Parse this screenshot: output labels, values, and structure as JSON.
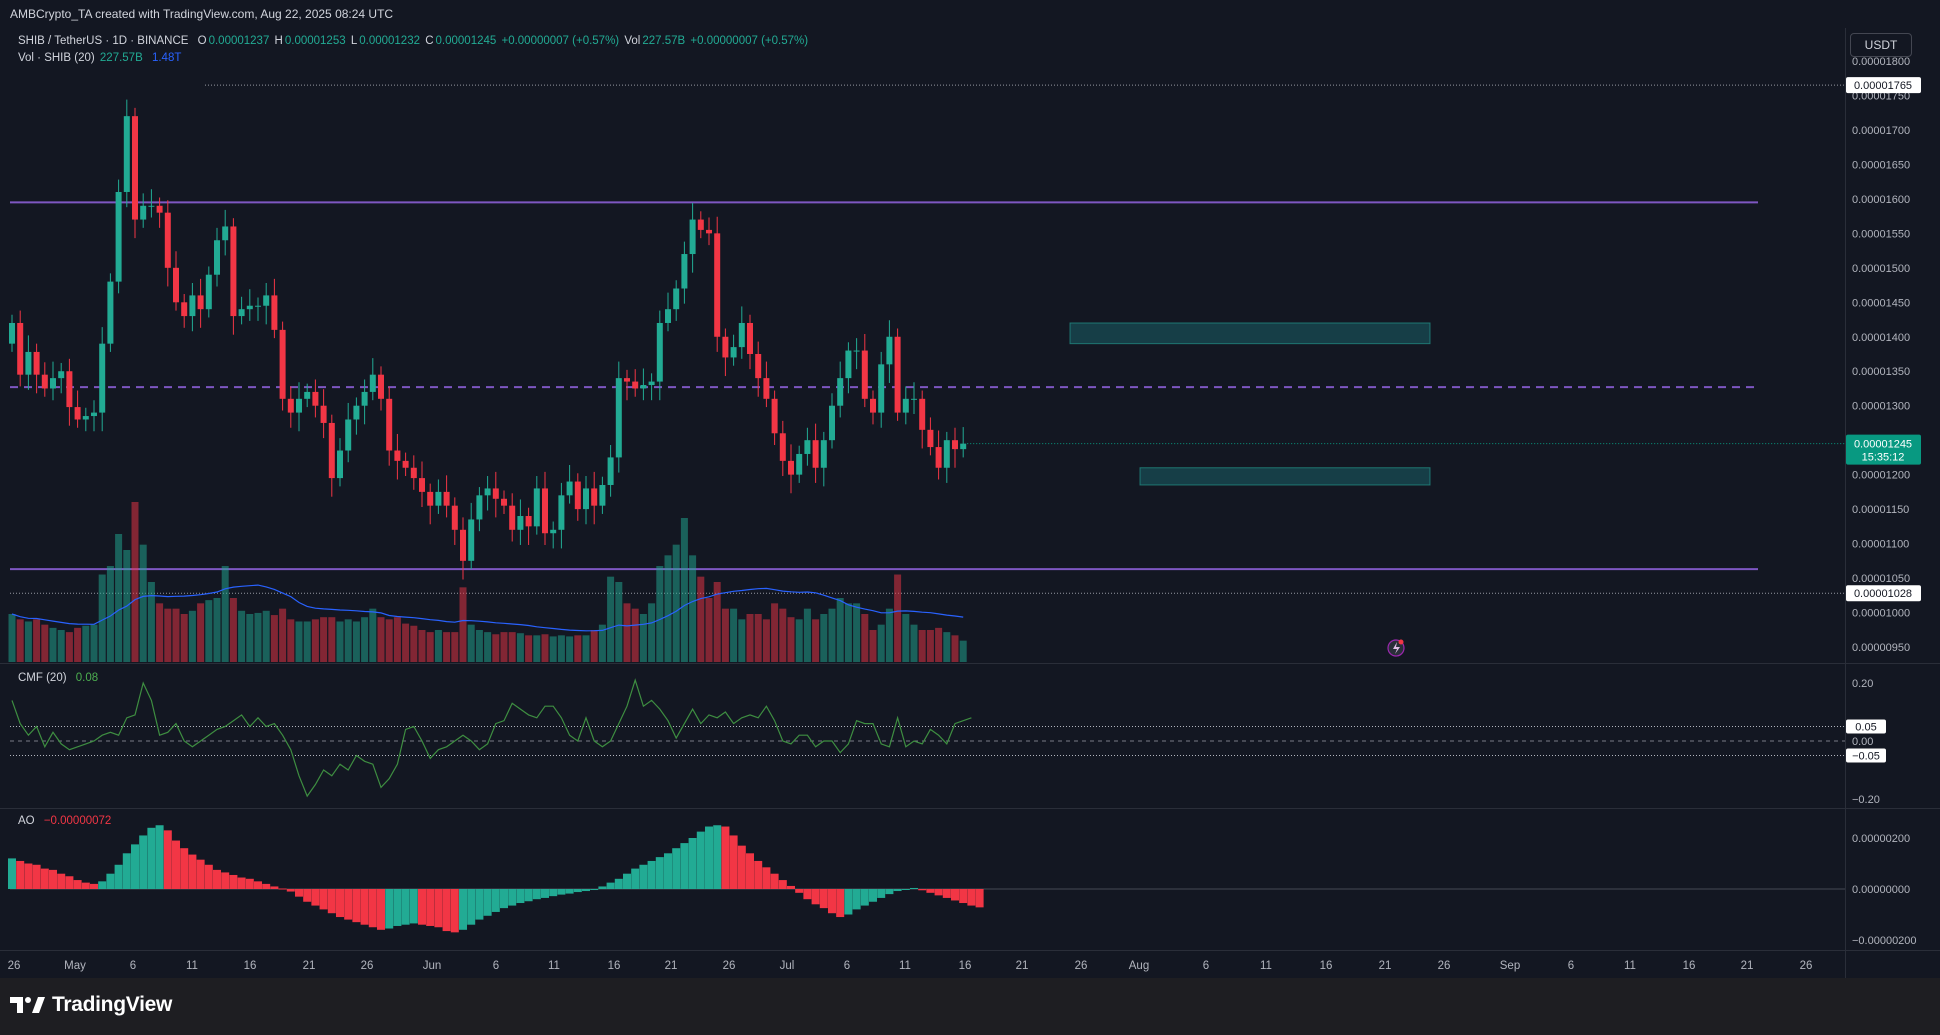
{
  "header": {
    "attribution": "AMBCrypto_TA created with TradingView.com, Aug 22, 2025 08:24 UTC"
  },
  "legend": {
    "symbol": "SHIB / TetherUS · 1D · BINANCE",
    "o_label": "O",
    "o": "0.00001237",
    "h_label": "H",
    "h": "0.00001253",
    "l_label": "L",
    "l": "0.00001232",
    "c_label": "C",
    "c": "0.00001245",
    "change": "+0.00000007 (+0.57%)",
    "vol_label": "Vol",
    "vol": "227.57B",
    "vol_change": "+0.00000007 (+0.57%)",
    "vol_ind": "Vol · SHIB (20)",
    "vol_ind_v1": "227.57B",
    "vol_ind_v2": "1.48T",
    "cmf": "CMF (20)",
    "cmf_v": "0.08",
    "ao": "AO",
    "ao_v": "−0.00000072"
  },
  "currency_button": "USDT",
  "price_labels": {
    "high": "0.00001765",
    "current": "0.00001245",
    "countdown": "15:35:12",
    "low_line": "0.00001028"
  },
  "cmf_labels": {
    "upper": "0.05",
    "lower": "−0.05"
  },
  "footer": {
    "brand": "TradingView"
  },
  "colors": {
    "up": "#22ab94",
    "down": "#f23645",
    "background": "#131722",
    "level_lines": "#7e57c2",
    "zones": "#1a5e66",
    "cmf_line": "#3e8e41",
    "vol_ma": "#2962ff"
  },
  "chart_data": [
    {
      "type": "candlestick",
      "title": "SHIB / TetherUS · 1D · BINANCE",
      "y_ticks": [
        "0.00001800",
        "0.00001750",
        "0.00001700",
        "0.00001650",
        "0.00001600",
        "0.00001550",
        "0.00001500",
        "0.00001450",
        "0.00001400",
        "0.00001350",
        "0.00001300",
        "0.00001250",
        "0.00001200",
        "0.00001150",
        "0.00001100",
        "0.00001050",
        "0.00001000",
        "0.00000950"
      ],
      "ylim": [
        9.3e-06,
        1.82e-05
      ],
      "x_ticks": [
        "26",
        "May",
        "6",
        "11",
        "16",
        "21",
        "26",
        "Jun",
        "6",
        "11",
        "16",
        "21",
        "26",
        "Jul",
        "6",
        "11",
        "16",
        "21",
        "26",
        "Aug",
        "6",
        "11",
        "16",
        "21",
        "26",
        "Sep",
        "6",
        "11",
        "16",
        "21",
        "26"
      ],
      "horizontal_levels": [
        1.595e-05,
        1.327e-05,
        1.063e-05
      ],
      "zones": [
        {
          "from": 1.39e-05,
          "to": 1.42e-05
        },
        {
          "from": 1.185e-05,
          "to": 1.21e-05
        }
      ],
      "last_close": 1.245e-05,
      "close": [
        1.42e-05,
        1.345e-05,
        1.378e-05,
        1.345e-05,
        1.325e-05,
        1.34e-05,
        1.35e-05,
        1.298e-05,
        1.28e-05,
        1.285e-05,
        1.29e-05,
        1.39e-05,
        1.48e-05,
        1.61e-05,
        1.72e-05,
        1.57e-05,
        1.59e-05,
        1.59e-05,
        1.58e-05,
        1.5e-05,
        1.45e-05,
        1.43e-05,
        1.46e-05,
        1.44e-05,
        1.49e-05,
        1.54e-05,
        1.56e-05,
        1.43e-05,
        1.44e-05,
        1.445e-05,
        1.445e-05,
        1.46e-05,
        1.41e-05,
        1.31e-05,
        1.29e-05,
        1.31e-05,
        1.32e-05,
        1.3e-05,
        1.275e-05,
        1.195e-05,
        1.235e-05,
        1.28e-05,
        1.3e-05,
        1.32e-05,
        1.345e-05,
        1.31e-05,
        1.235e-05,
        1.22e-05,
        1.21e-05,
        1.195e-05,
        1.175e-05,
        1.155e-05,
        1.175e-05,
        1.155e-05,
        1.12e-05,
        1.075e-05,
        1.135e-05,
        1.17e-05,
        1.18e-05,
        1.165e-05,
        1.155e-05,
        1.12e-05,
        1.14e-05,
        1.125e-05,
        1.18e-05,
        1.115e-05,
        1.12e-05,
        1.17e-05,
        1.19e-05,
        1.15e-05,
        1.18e-05,
        1.155e-05,
        1.185e-05,
        1.225e-05,
        1.34e-05,
        1.335e-05,
        1.325e-05,
        1.33e-05,
        1.335e-05,
        1.42e-05,
        1.44e-05,
        1.47e-05,
        1.52e-05,
        1.57e-05,
        1.555e-05,
        1.55e-05,
        1.4e-05,
        1.37e-05,
        1.385e-05,
        1.42e-05,
        1.375e-05,
        1.34e-05,
        1.31e-05,
        1.26e-05,
        1.22e-05,
        1.2e-05,
        1.23e-05,
        1.25e-05,
        1.21e-05,
        1.25e-05,
        1.3e-05,
        1.34e-05,
        1.38e-05,
        1.38e-05,
        1.31e-05,
        1.29e-05,
        1.36e-05,
        1.4e-05,
        1.29e-05,
        1.31e-05,
        1.31e-05,
        1.265e-05,
        1.24e-05,
        1.21e-05,
        1.25e-05,
        1.237e-05,
        1.245e-05
      ],
      "series": [
        {
          "name": "Vol · SHIB (20)",
          "values": [
            0.45,
            0.4,
            0.38,
            0.4,
            0.35,
            0.32,
            0.3,
            0.28,
            0.32,
            0.34,
            0.35,
            0.82,
            0.9,
            1.2,
            1.05,
            1.5,
            1.1,
            0.75,
            0.55,
            0.5,
            0.5,
            0.45,
            0.48,
            0.55,
            0.58,
            0.6,
            0.9,
            0.6,
            0.48,
            0.45,
            0.46,
            0.48,
            0.44,
            0.5,
            0.4,
            0.38,
            0.38,
            0.4,
            0.42,
            0.42,
            0.38,
            0.4,
            0.38,
            0.42,
            0.5,
            0.42,
            0.4,
            0.42,
            0.36,
            0.34,
            0.3,
            0.28,
            0.3,
            0.28,
            0.28,
            0.7,
            0.35,
            0.3,
            0.28,
            0.26,
            0.28,
            0.28,
            0.27,
            0.25,
            0.25,
            0.26,
            0.24,
            0.25,
            0.24,
            0.25,
            0.25,
            0.3,
            0.35,
            0.8,
            0.75,
            0.55,
            0.5,
            0.45,
            0.55,
            0.9,
            1.0,
            1.1,
            1.35,
            1.0,
            0.8,
            0.6,
            0.75,
            0.5,
            0.5,
            0.4,
            0.45,
            0.45,
            0.4,
            0.55,
            0.5,
            0.42,
            0.4,
            0.5,
            0.4,
            0.45,
            0.5,
            0.6,
            0.55,
            0.55,
            0.45,
            0.3,
            0.35,
            0.5,
            0.82,
            0.45,
            0.35,
            0.3,
            0.3,
            0.32,
            0.28,
            0.25,
            0.2
          ]
        }
      ]
    },
    {
      "type": "line",
      "title": "CMF (20)",
      "y_ticks": [
        "0.20",
        "0.00",
        "−0.20"
      ],
      "ylim": [
        -0.22,
        0.22
      ],
      "reference_lines": [
        0.05,
        0.0,
        -0.05
      ],
      "series": [
        {
          "name": "CMF (20)",
          "values": [
            0.14,
            0.06,
            0.02,
            0.05,
            -0.02,
            0.03,
            -0.01,
            -0.03,
            -0.02,
            -0.01,
            0.0,
            0.02,
            0.03,
            0.02,
            0.08,
            0.09,
            0.2,
            0.14,
            0.02,
            0.03,
            0.06,
            0.0,
            -0.02,
            0.0,
            0.02,
            0.04,
            0.05,
            0.07,
            0.09,
            0.05,
            0.08,
            0.05,
            0.06,
            0.02,
            -0.03,
            -0.12,
            -0.19,
            -0.15,
            -0.1,
            -0.12,
            -0.08,
            -0.1,
            -0.05,
            -0.07,
            -0.08,
            -0.16,
            -0.13,
            -0.08,
            0.04,
            0.05,
            0.0,
            -0.06,
            -0.03,
            -0.02,
            0.0,
            0.02,
            0.0,
            -0.03,
            -0.01,
            0.06,
            0.07,
            0.13,
            0.11,
            0.09,
            0.08,
            0.12,
            0.12,
            0.08,
            0.02,
            0.0,
            0.08,
            0.0,
            -0.02,
            0.0,
            0.06,
            0.12,
            0.21,
            0.12,
            0.14,
            0.11,
            0.07,
            0.01,
            0.06,
            0.11,
            0.06,
            0.09,
            0.08,
            0.1,
            0.06,
            0.08,
            0.09,
            0.08,
            0.12,
            0.07,
            0.0,
            -0.01,
            0.02,
            0.02,
            -0.02,
            0.0,
            0.0,
            -0.04,
            -0.01,
            0.07,
            0.06,
            0.06,
            -0.01,
            -0.02,
            0.08,
            -0.02,
            0.0,
            -0.01,
            0.04,
            0.02,
            -0.01,
            0.06,
            0.07,
            0.08
          ]
        }
      ]
    },
    {
      "type": "bar",
      "title": "AO",
      "y_ticks": [
        "0.00000200",
        "0.00000000",
        "−0.00000200"
      ],
      "ylim": [
        -2.2e-06,
        2.8e-06
      ],
      "series": [
        {
          "name": "AO",
          "values": [
            1.2e-06,
            1.1e-06,
            1e-06,
            9.5e-07,
            8e-07,
            7.5e-07,
            6e-07,
            5e-07,
            3.5e-07,
            2.5e-07,
            2e-07,
            3e-07,
            6e-07,
            9.5e-07,
            1.4e-06,
            1.75e-06,
            2.1e-06,
            2.4e-06,
            2.5e-06,
            2.3e-06,
            1.9e-06,
            1.6e-06,
            1.35e-06,
            1.15e-06,
            9.5e-07,
            7.5e-07,
            6.5e-07,
            5.5e-07,
            4.5e-07,
            4e-07,
            3e-07,
            2e-07,
            1e-07,
            2e-08,
            -1e-07,
            -3e-07,
            -5e-07,
            -6.5e-07,
            -8e-07,
            -9.5e-07,
            -1.1e-06,
            -1.2e-06,
            -1.3e-06,
            -1.4e-06,
            -1.5e-06,
            -1.6e-06,
            -1.55e-06,
            -1.45e-06,
            -1.4e-06,
            -1.35e-06,
            -1.4e-06,
            -1.45e-06,
            -1.5e-06,
            -1.65e-06,
            -1.7e-06,
            -1.6e-06,
            -1.4e-06,
            -1.2e-06,
            -1.05e-06,
            -9e-07,
            -7.5e-07,
            -6.5e-07,
            -5.5e-07,
            -4.8e-07,
            -4e-07,
            -3.5e-07,
            -2.8e-07,
            -2.2e-07,
            -1.8e-07,
            -1.2e-07,
            -8e-08,
            -4e-08,
            1e-07,
            2.5e-07,
            4e-07,
            6e-07,
            8e-07,
            9.5e-07,
            1.1e-06,
            1.25e-06,
            1.4e-06,
            1.6e-06,
            1.8e-06,
            2e-06,
            2.25e-06,
            2.45e-06,
            2.5e-06,
            2.45e-06,
            2.1e-06,
            1.7e-06,
            1.4e-06,
            1.1e-06,
            8.5e-07,
            6e-07,
            3.5e-07,
            1.2e-07,
            -1.5e-07,
            -4e-07,
            -6e-07,
            -7.5e-07,
            -9.5e-07,
            -1.1e-06,
            -1e-06,
            -8e-07,
            -6.5e-07,
            -5e-07,
            -3.5e-07,
            -2e-07,
            -8e-08,
            -2e-08,
            4e-08,
            -5e-08,
            -1.5e-07,
            -2.5e-07,
            -3.5e-07,
            -4.5e-07,
            -5.5e-07,
            -6.5e-07,
            -7.2e-07
          ]
        }
      ]
    }
  ]
}
